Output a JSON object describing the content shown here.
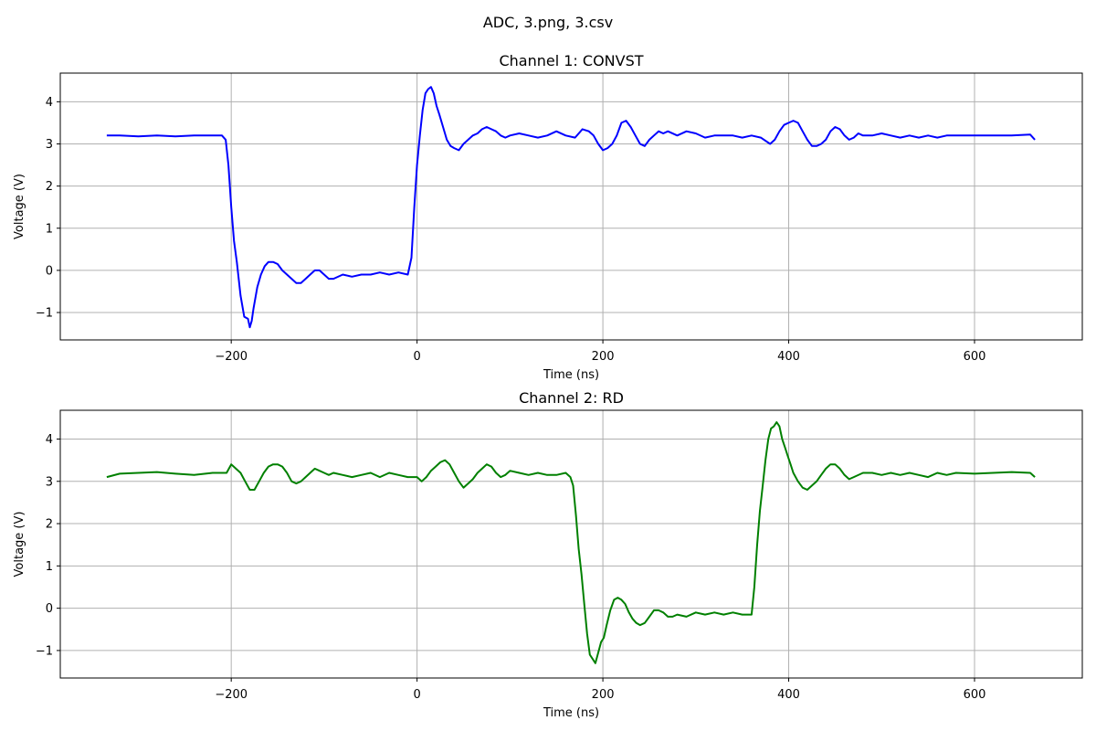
{
  "figure": {
    "suptitle": "ADC, 3.png, 3.csv"
  },
  "chart_data": [
    {
      "type": "line",
      "title": "Channel 1: CONVST",
      "xlabel": "Time (ns)",
      "ylabel": "Voltage (V)",
      "xlim": [
        -384,
        716
      ],
      "ylim": [
        -1.65,
        4.68
      ],
      "xticks": [
        -200,
        0,
        200,
        400,
        600
      ],
      "yticks": [
        -1,
        0,
        1,
        2,
        3,
        4
      ],
      "grid": true,
      "series": [
        {
          "color": "#0000ff",
          "x": [
            -334,
            -320,
            -300,
            -280,
            -260,
            -240,
            -220,
            -210,
            -206,
            -203,
            -200,
            -197,
            -194,
            -190,
            -186,
            -182,
            -180,
            -178,
            -176,
            -172,
            -168,
            -164,
            -160,
            -155,
            -150,
            -145,
            -140,
            -135,
            -130,
            -125,
            -120,
            -115,
            -110,
            -105,
            -100,
            -95,
            -90,
            -80,
            -70,
            -60,
            -50,
            -40,
            -30,
            -20,
            -10,
            -6,
            -3,
            0,
            3,
            6,
            9,
            12,
            15,
            18,
            21,
            24,
            28,
            32,
            36,
            40,
            45,
            50,
            55,
            60,
            65,
            70,
            75,
            80,
            85,
            90,
            95,
            100,
            110,
            120,
            130,
            140,
            150,
            160,
            170,
            178,
            185,
            190,
            195,
            200,
            205,
            210,
            215,
            220,
            225,
            230,
            235,
            240,
            245,
            250,
            255,
            260,
            265,
            270,
            280,
            290,
            300,
            310,
            320,
            330,
            340,
            350,
            360,
            370,
            380,
            385,
            390,
            395,
            400,
            405,
            410,
            415,
            420,
            425,
            430,
            435,
            440,
            445,
            450,
            455,
            460,
            465,
            470,
            475,
            480,
            490,
            500,
            510,
            520,
            530,
            540,
            550,
            560,
            570,
            580,
            600,
            620,
            640,
            660,
            665
          ],
          "y": [
            3.2,
            3.2,
            3.18,
            3.2,
            3.18,
            3.2,
            3.2,
            3.2,
            3.1,
            2.5,
            1.5,
            0.7,
            0.2,
            -0.6,
            -1.1,
            -1.15,
            -1.35,
            -1.2,
            -0.9,
            -0.4,
            -0.1,
            0.1,
            0.2,
            0.2,
            0.15,
            0.0,
            -0.1,
            -0.2,
            -0.3,
            -0.3,
            -0.2,
            -0.1,
            0.0,
            0.0,
            -0.1,
            -0.2,
            -0.2,
            -0.1,
            -0.15,
            -0.1,
            -0.1,
            -0.05,
            -0.1,
            -0.05,
            -0.1,
            0.3,
            1.5,
            2.5,
            3.2,
            3.8,
            4.2,
            4.3,
            4.35,
            4.2,
            3.9,
            3.7,
            3.4,
            3.1,
            2.95,
            2.9,
            2.85,
            3.0,
            3.1,
            3.2,
            3.25,
            3.35,
            3.4,
            3.35,
            3.3,
            3.2,
            3.15,
            3.2,
            3.25,
            3.2,
            3.15,
            3.2,
            3.3,
            3.2,
            3.15,
            3.35,
            3.3,
            3.2,
            3.0,
            2.85,
            2.9,
            3.0,
            3.2,
            3.5,
            3.55,
            3.4,
            3.2,
            3.0,
            2.95,
            3.1,
            3.2,
            3.3,
            3.25,
            3.3,
            3.2,
            3.3,
            3.25,
            3.15,
            3.2,
            3.2,
            3.2,
            3.15,
            3.2,
            3.15,
            3.0,
            3.1,
            3.3,
            3.45,
            3.5,
            3.55,
            3.5,
            3.3,
            3.1,
            2.95,
            2.95,
            3.0,
            3.1,
            3.3,
            3.4,
            3.35,
            3.2,
            3.1,
            3.15,
            3.25,
            3.2,
            3.2,
            3.25,
            3.2,
            3.15,
            3.2,
            3.15,
            3.2,
            3.15,
            3.2,
            3.2,
            3.2,
            3.2,
            3.2,
            3.22,
            3.1
          ]
        }
      ]
    },
    {
      "type": "line",
      "title": "Channel 2: RD",
      "xlabel": "Time (ns)",
      "ylabel": "Voltage (V)",
      "xlim": [
        -384,
        716
      ],
      "ylim": [
        -1.65,
        4.68
      ],
      "xticks": [
        -200,
        0,
        200,
        400,
        600
      ],
      "yticks": [
        -1,
        0,
        1,
        2,
        3,
        4
      ],
      "grid": true,
      "series": [
        {
          "color": "#008000",
          "x": [
            -334,
            -320,
            -300,
            -280,
            -260,
            -240,
            -220,
            -205,
            -200,
            -195,
            -190,
            -185,
            -180,
            -175,
            -170,
            -165,
            -160,
            -155,
            -150,
            -145,
            -140,
            -135,
            -130,
            -125,
            -120,
            -115,
            -110,
            -105,
            -100,
            -95,
            -90,
            -80,
            -70,
            -60,
            -50,
            -40,
            -30,
            -20,
            -10,
            0,
            5,
            10,
            15,
            20,
            25,
            30,
            35,
            40,
            45,
            50,
            55,
            60,
            65,
            70,
            75,
            80,
            85,
            90,
            95,
            100,
            110,
            120,
            130,
            140,
            150,
            160,
            165,
            168,
            171,
            174,
            177,
            180,
            183,
            186,
            189,
            192,
            195,
            198,
            201,
            204,
            208,
            212,
            216,
            220,
            224,
            228,
            232,
            236,
            240,
            245,
            250,
            255,
            260,
            265,
            270,
            275,
            280,
            290,
            300,
            310,
            320,
            330,
            340,
            350,
            360,
            363,
            366,
            369,
            372,
            375,
            378,
            381,
            384,
            387,
            390,
            393,
            396,
            399,
            402,
            405,
            410,
            415,
            420,
            425,
            430,
            435,
            440,
            445,
            450,
            455,
            460,
            465,
            470,
            480,
            490,
            500,
            510,
            520,
            530,
            540,
            550,
            560,
            570,
            580,
            600,
            620,
            640,
            660,
            665
          ],
          "y": [
            3.1,
            3.18,
            3.2,
            3.22,
            3.18,
            3.15,
            3.2,
            3.2,
            3.4,
            3.3,
            3.2,
            3.0,
            2.8,
            2.8,
            3.0,
            3.2,
            3.35,
            3.4,
            3.4,
            3.35,
            3.2,
            3.0,
            2.95,
            3.0,
            3.1,
            3.2,
            3.3,
            3.25,
            3.2,
            3.15,
            3.2,
            3.15,
            3.1,
            3.15,
            3.2,
            3.1,
            3.2,
            3.15,
            3.1,
            3.1,
            3.0,
            3.1,
            3.25,
            3.35,
            3.45,
            3.5,
            3.4,
            3.2,
            3.0,
            2.85,
            2.95,
            3.05,
            3.2,
            3.3,
            3.4,
            3.35,
            3.2,
            3.1,
            3.15,
            3.25,
            3.2,
            3.15,
            3.2,
            3.15,
            3.15,
            3.2,
            3.1,
            2.9,
            2.2,
            1.4,
            0.8,
            0.1,
            -0.6,
            -1.1,
            -1.2,
            -1.3,
            -1.05,
            -0.8,
            -0.7,
            -0.4,
            -0.05,
            0.2,
            0.25,
            0.2,
            0.1,
            -0.1,
            -0.25,
            -0.35,
            -0.4,
            -0.35,
            -0.2,
            -0.05,
            -0.05,
            -0.1,
            -0.2,
            -0.2,
            -0.15,
            -0.2,
            -0.1,
            -0.15,
            -0.1,
            -0.15,
            -0.1,
            -0.15,
            -0.15,
            0.5,
            1.5,
            2.3,
            2.9,
            3.5,
            4.0,
            4.25,
            4.3,
            4.4,
            4.3,
            4.0,
            3.8,
            3.6,
            3.4,
            3.2,
            3.0,
            2.85,
            2.8,
            2.9,
            3.0,
            3.15,
            3.3,
            3.4,
            3.4,
            3.3,
            3.15,
            3.05,
            3.1,
            3.2,
            3.2,
            3.15,
            3.2,
            3.15,
            3.2,
            3.15,
            3.1,
            3.2,
            3.15,
            3.2,
            3.18,
            3.2,
            3.22,
            3.2,
            3.1
          ]
        }
      ]
    }
  ]
}
